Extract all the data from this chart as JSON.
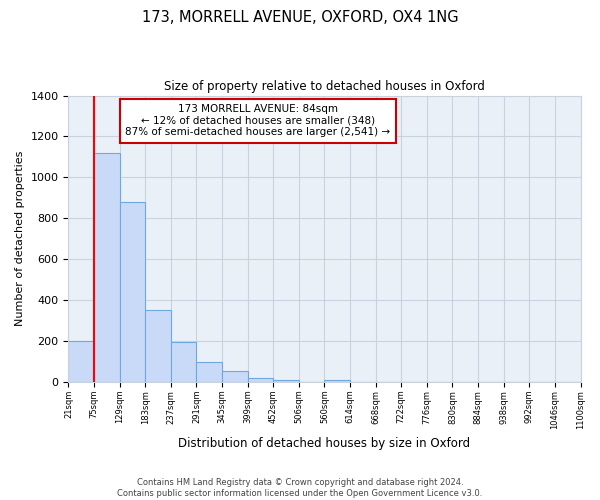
{
  "title": "173, MORRELL AVENUE, OXFORD, OX4 1NG",
  "subtitle": "Size of property relative to detached houses in Oxford",
  "xlabel": "Distribution of detached houses by size in Oxford",
  "ylabel": "Number of detached properties",
  "bar_values": [
    200,
    1120,
    880,
    350,
    195,
    100,
    55,
    20,
    12,
    0,
    10,
    0,
    0,
    0,
    0,
    0,
    0,
    0,
    0,
    0
  ],
  "bin_edges": [
    21,
    75,
    129,
    183,
    237,
    291,
    345,
    399,
    452,
    506,
    560,
    614,
    668,
    722,
    776,
    830,
    884,
    938,
    992,
    1046,
    1100
  ],
  "bin_labels": [
    "21sqm",
    "75sqm",
    "129sqm",
    "183sqm",
    "237sqm",
    "291sqm",
    "345sqm",
    "399sqm",
    "452sqm",
    "506sqm",
    "560sqm",
    "614sqm",
    "668sqm",
    "722sqm",
    "776sqm",
    "830sqm",
    "884sqm",
    "938sqm",
    "992sqm",
    "1046sqm",
    "1100sqm"
  ],
  "bar_color": "#c9daf8",
  "bar_edge_color": "#6fa8dc",
  "red_line_bin": 1,
  "ylim": [
    0,
    1400
  ],
  "yticks": [
    0,
    200,
    400,
    600,
    800,
    1000,
    1200,
    1400
  ],
  "annotation_box_text": "173 MORRELL AVENUE: 84sqm\n← 12% of detached houses are smaller (348)\n87% of semi-detached houses are larger (2,541) →",
  "annotation_box_color": "#ffffff",
  "annotation_box_edge_color": "#cc0000",
  "footer_line1": "Contains HM Land Registry data © Crown copyright and database right 2024.",
  "footer_line2": "Contains public sector information licensed under the Open Government Licence v3.0.",
  "grid_color": "#c9d3e0",
  "background_color": "#ffffff",
  "plot_bg_color": "#eaf0f8"
}
